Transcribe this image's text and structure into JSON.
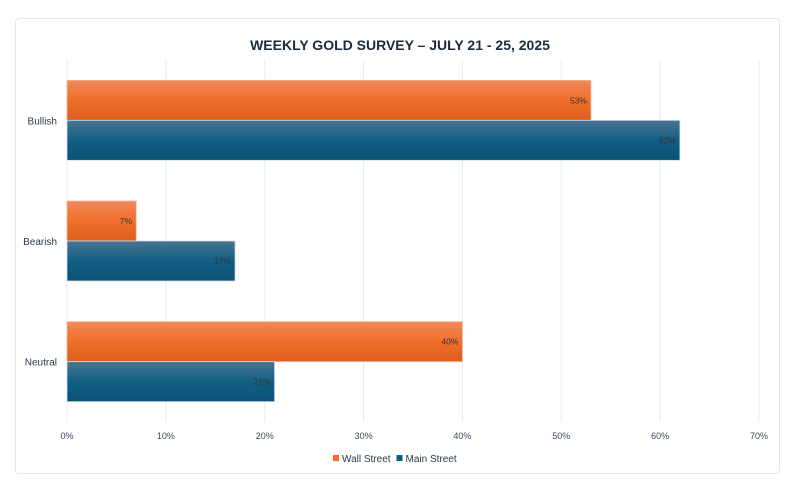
{
  "chart_data": {
    "type": "bar",
    "orientation": "horizontal",
    "title": "WEEKLY GOLD SURVEY – JULY 21 - 25, 2025",
    "categories": [
      "Bullish",
      "Bearish",
      "Neutral"
    ],
    "series": [
      {
        "name": "Wall Street",
        "values": [
          53,
          7,
          40
        ],
        "color": "#ef6c2c"
      },
      {
        "name": "Main Street",
        "values": [
          62,
          17,
          21
        ],
        "color": "#0f5a80"
      }
    ],
    "value_suffix": "%",
    "xlim": [
      0,
      70
    ],
    "xticks": [
      0,
      10,
      20,
      30,
      40,
      50,
      60,
      70
    ],
    "xtick_labels": [
      "0%",
      "10%",
      "20%",
      "30%",
      "40%",
      "50%",
      "60%",
      "70%"
    ],
    "xlabel": "",
    "ylabel": "",
    "grid": true,
    "legend": "bottom"
  }
}
